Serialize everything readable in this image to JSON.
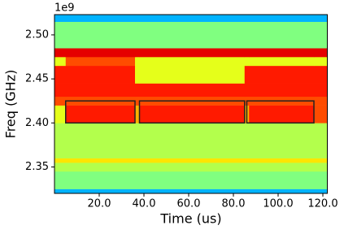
{
  "chart_data": {
    "type": "spectrogram",
    "offset_text": "1e9",
    "xlabel": "Time (us)",
    "ylabel": "Freq (GHz)",
    "xlim": [
      0,
      122
    ],
    "ylim": [
      2.32,
      2.523
    ],
    "xticks": [
      {
        "value": 20,
        "label": "20.0"
      },
      {
        "value": 40,
        "label": "40.0"
      },
      {
        "value": 60,
        "label": "60.0"
      },
      {
        "value": 80,
        "label": "80.0"
      },
      {
        "value": 100,
        "label": "100.0"
      },
      {
        "value": 120,
        "label": "120.0"
      }
    ],
    "yticks": [
      2.35,
      {
        "value": 2.4,
        "label": "2.40"
      },
      2.45,
      {
        "value": 2.5,
        "label": "2.50"
      }
    ],
    "colormap": "jet",
    "zlim": [
      0,
      1
    ],
    "time_edges": [
      0,
      5,
      36,
      38,
      85,
      87,
      116,
      122
    ],
    "freq_edges": [
      2.32,
      2.325,
      2.345,
      2.355,
      2.36,
      2.4,
      2.42,
      2.43,
      2.445,
      2.465,
      2.475,
      2.485,
      2.515,
      2.523
    ],
    "intensity": [
      [
        0.3,
        0.3,
        0.3,
        0.3,
        0.3,
        0.3,
        0.3
      ],
      [
        0.5,
        0.5,
        0.5,
        0.5,
        0.5,
        0.5,
        0.5
      ],
      [
        0.55,
        0.55,
        0.55,
        0.55,
        0.55,
        0.55,
        0.55
      ],
      [
        0.65,
        0.65,
        0.65,
        0.65,
        0.65,
        0.65,
        0.65
      ],
      [
        0.55,
        0.55,
        0.55,
        0.55,
        0.55,
        0.55,
        0.55
      ],
      [
        0.6,
        0.85,
        0.7,
        0.85,
        0.7,
        0.85,
        0.8
      ],
      [
        0.8,
        0.8,
        0.8,
        0.8,
        0.8,
        0.8,
        0.8
      ],
      [
        0.85,
        0.85,
        0.85,
        0.85,
        0.85,
        0.85,
        0.85
      ],
      [
        0.85,
        0.85,
        0.6,
        0.6,
        0.85,
        0.85,
        0.85
      ],
      [
        0.6,
        0.8,
        0.6,
        0.6,
        0.6,
        0.6,
        0.6
      ],
      [
        0.9,
        0.9,
        0.9,
        0.9,
        0.9,
        0.9,
        0.9
      ],
      [
        0.5,
        0.5,
        0.5,
        0.5,
        0.5,
        0.5,
        0.5
      ],
      [
        0.3,
        0.3,
        0.3,
        0.3,
        0.3,
        0.3,
        0.3
      ]
    ],
    "box_color": "#222222",
    "boxes": [
      {
        "x0": 5,
        "x1": 36,
        "y0": 2.4,
        "y1": 2.425
      },
      {
        "x0": 38,
        "x1": 85,
        "y0": 2.4,
        "y1": 2.425
      },
      {
        "x0": 86,
        "x1": 116,
        "y0": 2.4,
        "y1": 2.425
      }
    ]
  }
}
